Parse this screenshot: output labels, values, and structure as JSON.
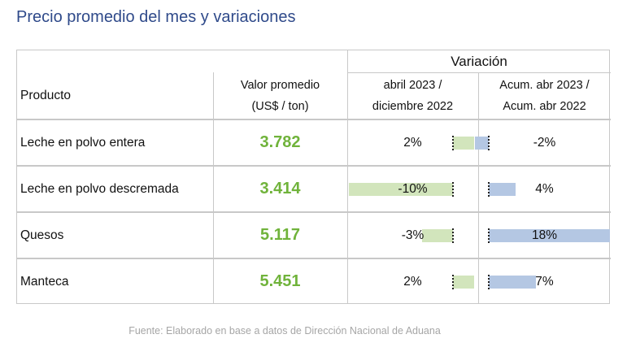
{
  "title": "Precio promedio del mes y variaciones",
  "table": {
    "header": {
      "group_label": "Variación",
      "product": "Producto",
      "value_line1": "Valor promedio",
      "value_line2": "(US$ / ton)",
      "var1_line1": "abril 2023 /",
      "var1_line2": "diciembre 2022",
      "var2_line1": "Acum. abr 2023 /",
      "var2_line2": "Acum. abr 2022"
    },
    "rows": [
      {
        "product": "Leche en polvo entera",
        "value": "3.782",
        "var1": "2%",
        "var1_pct": 2,
        "var2": "-2%",
        "var2_pct": -2
      },
      {
        "product": "Leche en polvo descremada",
        "value": "3.414",
        "var1": "-10%",
        "var1_pct": -10,
        "var2": "4%",
        "var2_pct": 4
      },
      {
        "product": "Quesos",
        "value": "5.117",
        "var1": "-3%",
        "var1_pct": -3,
        "var2": "18%",
        "var2_pct": 18
      },
      {
        "product": "Manteca",
        "value": "5.451",
        "var1": "2%",
        "var1_pct": 2,
        "var2": "7%",
        "var2_pct": 7
      }
    ],
    "colors": {
      "value_text": "#70b33b",
      "bar_var1": "#d2e5bc",
      "bar_var2": "#b4c7e3"
    }
  },
  "source": "Fuente: Elaborado en base a datos de Dirección Nacional de Aduana"
}
